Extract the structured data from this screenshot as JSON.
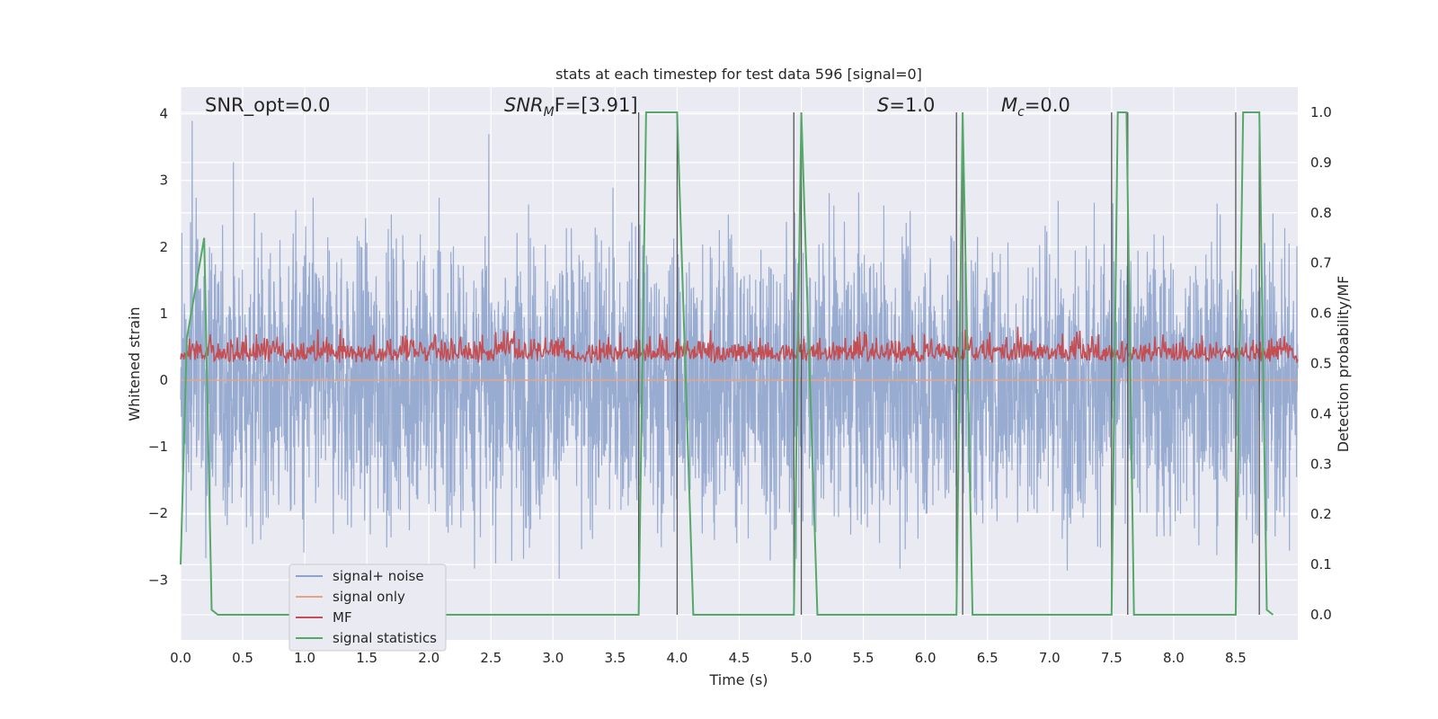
{
  "chart_data": {
    "type": "line",
    "title": "stats at each timestep for test data 596 [signal=0]",
    "xlabel": "Time (s)",
    "ylabel_left": "Whitened strain",
    "ylabel_right": "Detection probability/MF",
    "xlim": [
      0.0,
      9.0
    ],
    "ylim_left": [
      -3.9,
      4.4
    ],
    "ylim_right": [
      -0.05,
      1.05
    ],
    "x_ticks": [
      "0.0",
      "0.5",
      "1.0",
      "1.5",
      "2.0",
      "2.5",
      "3.0",
      "3.5",
      "4.0",
      "4.5",
      "5.0",
      "5.5",
      "6.0",
      "6.5",
      "7.0",
      "7.5",
      "8.0",
      "8.5"
    ],
    "left_ticks": [
      "4",
      "3",
      "2",
      "1",
      "0",
      "−1",
      "−2",
      "−3"
    ],
    "right_ticks": [
      "1.0",
      "0.9",
      "0.8",
      "0.7",
      "0.6",
      "0.5",
      "0.4",
      "0.3",
      "0.2",
      "0.1",
      "0.0"
    ],
    "grid": true,
    "legend_position": "lower-left",
    "annotations": {
      "snr_opt": "SNR_opt=0.0",
      "snr_mf_base": "SNR",
      "snr_mf_sub": "M",
      "snr_mf_rest": "F=[3.91]",
      "s_sym": "S",
      "s_rest": "=1.0",
      "mc_sym": "M",
      "mc_sub": "c",
      "mc_rest": "=0.0"
    },
    "series": [
      {
        "name": "signal+ noise",
        "color": "#8fa4cc",
        "amplitude_range": [
          -3.6,
          4.0
        ]
      },
      {
        "name": "signal only",
        "color": "#e8a384",
        "values": "constant 0.0"
      },
      {
        "name": "MF",
        "color": "#c44e52",
        "axis": "right",
        "range": [
          0.5,
          0.6
        ]
      },
      {
        "name": "signal statistics",
        "color": "#55a868",
        "axis": "right",
        "x": [
          0.0,
          0.05,
          0.19,
          0.25,
          0.3,
          3.69,
          3.75,
          4.0,
          4.13,
          4.94,
          5.0,
          5.13,
          6.25,
          6.3,
          6.38,
          7.5,
          7.55,
          7.62,
          7.68,
          8.5,
          8.56,
          8.69,
          8.75,
          8.8
        ],
        "y": [
          0.1,
          0.55,
          0.75,
          0.01,
          0.0,
          0.0,
          1.0,
          1.0,
          0.0,
          0.0,
          1.0,
          0.0,
          0.0,
          1.0,
          0.0,
          0.0,
          1.0,
          1.0,
          0.0,
          0.0,
          1.0,
          1.0,
          0.01,
          0.0
        ]
      }
    ],
    "detection_markers_x": [
      3.69,
      4.0,
      4.94,
      5.0,
      6.25,
      6.3,
      7.5,
      7.63,
      8.5,
      8.69
    ]
  }
}
